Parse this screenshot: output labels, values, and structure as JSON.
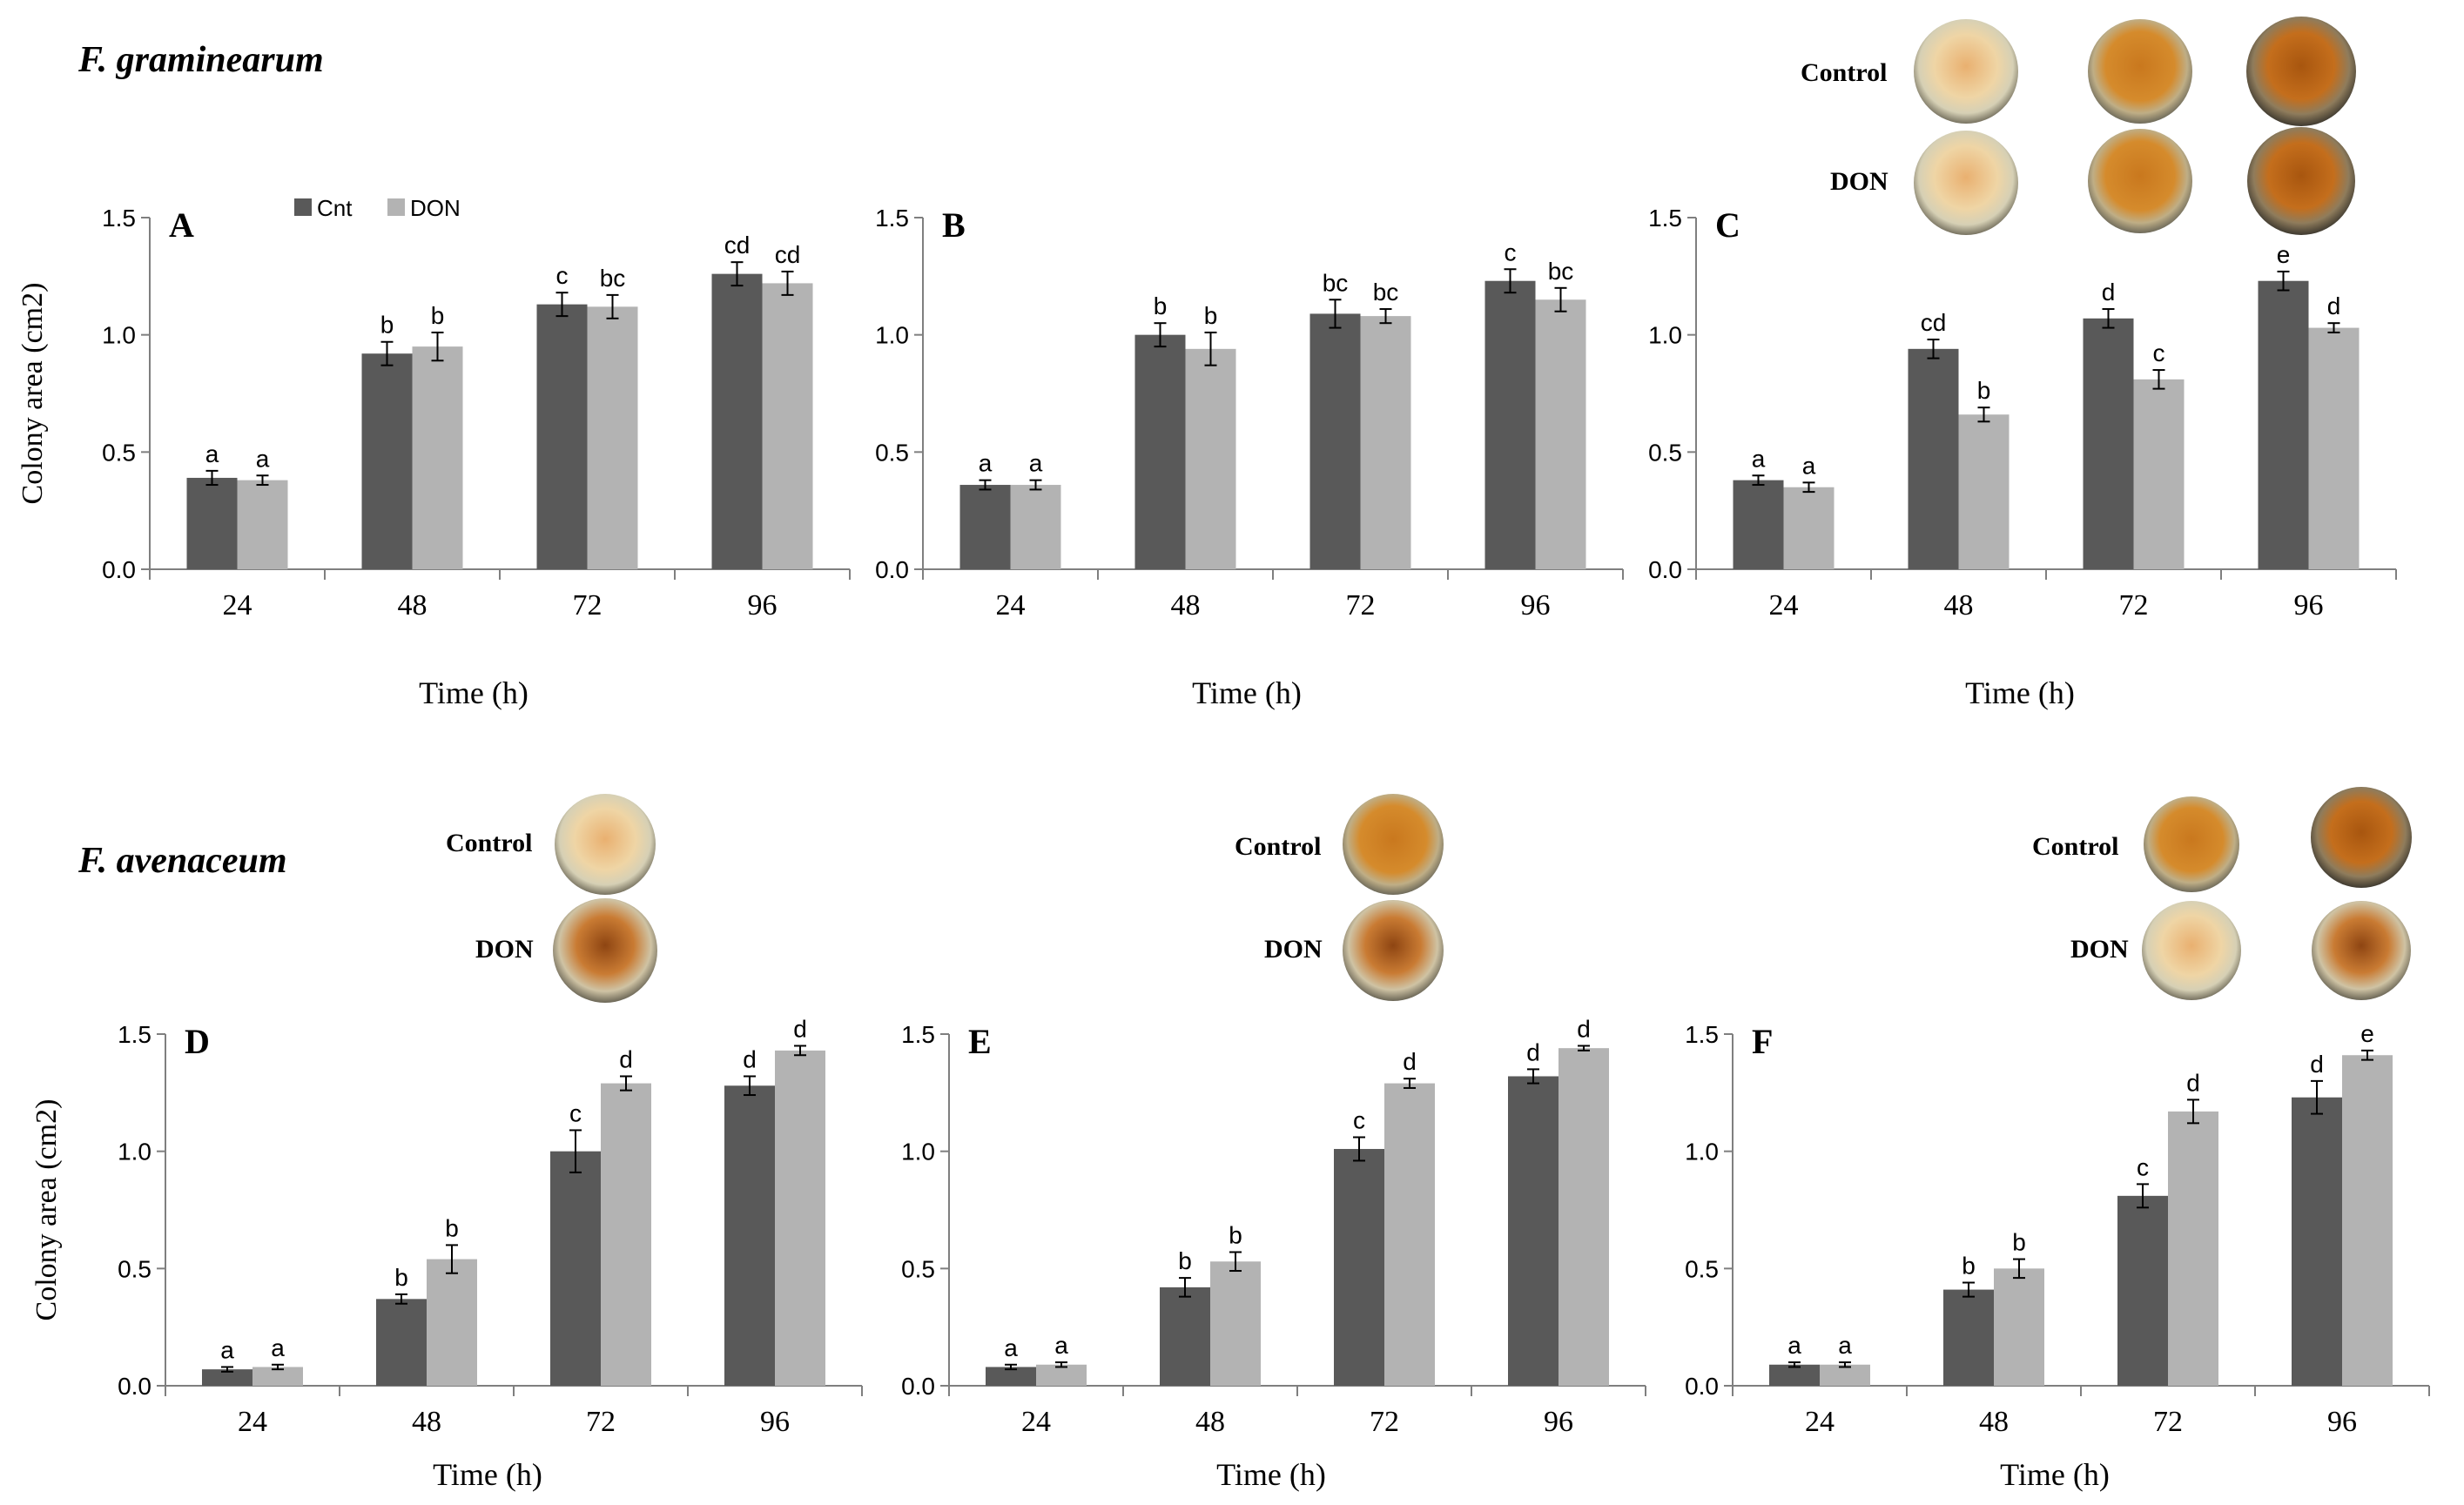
{
  "figure": {
    "species_top": "F. graminearum",
    "species_bottom": "F. avenaceum",
    "legend": {
      "series1": "Cnt",
      "series2": "DON"
    },
    "plate_labels": {
      "control": "Control",
      "don": "DON"
    }
  },
  "colors": {
    "cnt": "#595959",
    "don": "#b3b3b3",
    "axis": "#7f7f7f",
    "text": "#000000"
  },
  "chart_data": [
    {
      "panel": "A",
      "type": "bar",
      "categories": [
        "24",
        "48",
        "72",
        "96"
      ],
      "xlabel": "Time (h)",
      "ylabel": "Colony area (cm2)",
      "ylim": [
        0,
        1.5
      ],
      "yticks": [
        "0.0",
        "0.5",
        "1.0",
        "1.5"
      ],
      "series": [
        {
          "name": "Cnt",
          "values": [
            0.39,
            0.92,
            1.13,
            1.26
          ],
          "errors": [
            0.03,
            0.05,
            0.05,
            0.05
          ],
          "labels": [
            "a",
            "b",
            "c",
            "cd"
          ]
        },
        {
          "name": "DON",
          "values": [
            0.38,
            0.95,
            1.12,
            1.22
          ],
          "errors": [
            0.02,
            0.06,
            0.05,
            0.05
          ],
          "labels": [
            "a",
            "b",
            "bc",
            "cd"
          ]
        }
      ]
    },
    {
      "panel": "B",
      "type": "bar",
      "categories": [
        "24",
        "48",
        "72",
        "96"
      ],
      "xlabel": "Time (h)",
      "ylabel": "",
      "ylim": [
        0,
        1.5
      ],
      "yticks": [
        "0.0",
        "0.5",
        "1.0",
        "1.5"
      ],
      "series": [
        {
          "name": "Cnt",
          "values": [
            0.36,
            1.0,
            1.09,
            1.23
          ],
          "errors": [
            0.02,
            0.05,
            0.06,
            0.05
          ],
          "labels": [
            "a",
            "b",
            "bc",
            "c"
          ]
        },
        {
          "name": "DON",
          "values": [
            0.36,
            0.94,
            1.08,
            1.15
          ],
          "errors": [
            0.02,
            0.07,
            0.03,
            0.05
          ],
          "labels": [
            "a",
            "b",
            "bc",
            "bc"
          ]
        }
      ]
    },
    {
      "panel": "C",
      "type": "bar",
      "categories": [
        "24",
        "48",
        "72",
        "96"
      ],
      "xlabel": "Time (h)",
      "ylabel": "",
      "ylim": [
        0,
        1.5
      ],
      "yticks": [
        "0.0",
        "0.5",
        "1.0",
        "1.5"
      ],
      "series": [
        {
          "name": "Cnt",
          "values": [
            0.38,
            0.94,
            1.07,
            1.23
          ],
          "errors": [
            0.02,
            0.04,
            0.04,
            0.04
          ],
          "labels": [
            "a",
            "cd",
            "d",
            "e"
          ]
        },
        {
          "name": "DON",
          "values": [
            0.35,
            0.66,
            0.81,
            1.03
          ],
          "errors": [
            0.02,
            0.03,
            0.04,
            0.02
          ],
          "labels": [
            "a",
            "b",
            "c",
            "d"
          ]
        }
      ]
    },
    {
      "panel": "D",
      "type": "bar",
      "categories": [
        "24",
        "48",
        "72",
        "96"
      ],
      "xlabel": "Time (h)",
      "ylabel": "Colony area (cm2)",
      "ylim": [
        0,
        1.5
      ],
      "yticks": [
        "0.0",
        "0.5",
        "1.0",
        "1.5"
      ],
      "series": [
        {
          "name": "Cnt",
          "values": [
            0.07,
            0.37,
            1.0,
            1.28
          ],
          "errors": [
            0.01,
            0.02,
            0.09,
            0.04
          ],
          "labels": [
            "a",
            "b",
            "c",
            "d"
          ]
        },
        {
          "name": "DON",
          "values": [
            0.08,
            0.54,
            1.29,
            1.43
          ],
          "errors": [
            0.01,
            0.06,
            0.03,
            0.02
          ],
          "labels": [
            "a",
            "b",
            "d",
            "d"
          ]
        }
      ]
    },
    {
      "panel": "E",
      "type": "bar",
      "categories": [
        "24",
        "48",
        "72",
        "96"
      ],
      "xlabel": "Time (h)",
      "ylabel": "",
      "ylim": [
        0,
        1.5
      ],
      "yticks": [
        "0.0",
        "0.5",
        "1.0",
        "1.5"
      ],
      "series": [
        {
          "name": "Cnt",
          "values": [
            0.08,
            0.42,
            1.01,
            1.32
          ],
          "errors": [
            0.01,
            0.04,
            0.05,
            0.03
          ],
          "labels": [
            "a",
            "b",
            "c",
            "d"
          ]
        },
        {
          "name": "DON",
          "values": [
            0.09,
            0.53,
            1.29,
            1.44
          ],
          "errors": [
            0.01,
            0.04,
            0.02,
            0.01
          ],
          "labels": [
            "a",
            "b",
            "d",
            "d"
          ]
        }
      ]
    },
    {
      "panel": "F",
      "type": "bar",
      "categories": [
        "24",
        "48",
        "72",
        "96"
      ],
      "xlabel": "Time (h)",
      "ylabel": "",
      "ylim": [
        0,
        1.5
      ],
      "yticks": [
        "0.0",
        "0.5",
        "1.0",
        "1.5"
      ],
      "series": [
        {
          "name": "Cnt",
          "values": [
            0.09,
            0.41,
            0.81,
            1.23
          ],
          "errors": [
            0.01,
            0.03,
            0.05,
            0.07
          ],
          "labels": [
            "a",
            "b",
            "c",
            "d"
          ]
        },
        {
          "name": "DON",
          "values": [
            0.09,
            0.5,
            1.17,
            1.41
          ],
          "errors": [
            0.01,
            0.04,
            0.05,
            0.02
          ],
          "labels": [
            "a",
            "b",
            "d",
            "e"
          ]
        }
      ]
    }
  ]
}
